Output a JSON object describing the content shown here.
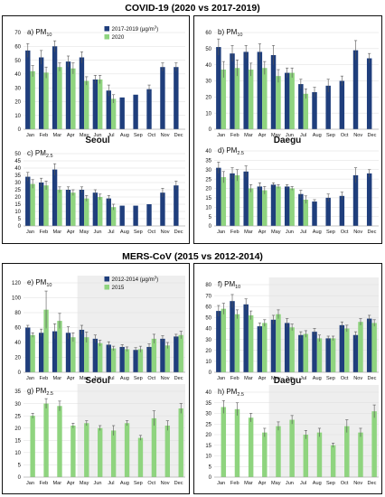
{
  "section_titles": [
    "COVID-19 (2020 vs 2017-2019)",
    "MERS-CoV (2015 vs 2012-2014)"
  ],
  "city_labels": [
    "Seoul",
    "Daegu",
    "Seoul",
    "Daegu"
  ],
  "colors": {
    "base": "#1f3e7c",
    "event": "#8fd47f",
    "shade": "#eeeeee"
  },
  "chart_data": [
    {
      "type": "bar",
      "panel": "a",
      "title": "a) PM10",
      "city": "Seoul",
      "categories": [
        "Jan",
        "Feb",
        "Mar",
        "Apr",
        "May",
        "Jun",
        "Jul",
        "Aug",
        "Sep",
        "Oct",
        "Nov",
        "Dec"
      ],
      "yticks": [
        0,
        10,
        20,
        30,
        40,
        50,
        60,
        70
      ],
      "ylim": [
        0,
        70
      ],
      "shaded": [],
      "series": [
        {
          "name": "2017-2019 (μg/m3)",
          "values": [
            57,
            52,
            60,
            49,
            52,
            36,
            28,
            23,
            25,
            29,
            45,
            45
          ],
          "err": [
            5,
            5,
            4,
            4,
            4,
            3,
            4,
            0,
            0,
            3,
            3,
            3
          ]
        },
        {
          "name": "2020",
          "values": [
            42,
            41,
            45,
            44,
            35,
            36,
            22,
            null,
            null,
            null,
            null,
            null
          ],
          "err": [
            4,
            4,
            3,
            4,
            3,
            3,
            3,
            null,
            null,
            null,
            null,
            null
          ]
        }
      ]
    },
    {
      "type": "bar",
      "panel": "b",
      "title": "b) PM10",
      "city": "Daegu",
      "categories": [
        "Jan",
        "Feb",
        "Mar",
        "Apr",
        "May",
        "Jun",
        "Jul",
        "Aug",
        "Sep",
        "Oct",
        "Nov",
        "Dec"
      ],
      "yticks": [
        0,
        10,
        20,
        30,
        40,
        50,
        60
      ],
      "ylim": [
        0,
        60
      ],
      "shaded": [],
      "series": [
        {
          "name": "",
          "values": [
            51,
            47,
            48,
            48,
            46,
            35,
            28,
            23,
            27,
            30,
            49,
            44
          ],
          "err": [
            5,
            5,
            4,
            5,
            6,
            3,
            3,
            3,
            4,
            3,
            6,
            3
          ]
        },
        {
          "name": "",
          "values": [
            37,
            38,
            37,
            38,
            33,
            35,
            22,
            null,
            null,
            null,
            null,
            null
          ],
          "err": [
            5,
            5,
            4,
            4,
            4,
            3,
            3,
            null,
            null,
            null,
            null,
            null
          ]
        }
      ]
    },
    {
      "type": "bar",
      "panel": "c",
      "title": "c) PM2.5",
      "city": "Seoul",
      "categories": [
        "Jan",
        "Feb",
        "Mar",
        "Apr",
        "May",
        "Jun",
        "Jul",
        "Aug",
        "Sep",
        "Oct",
        "Nov",
        "Dec"
      ],
      "yticks": [
        0,
        5,
        10,
        15,
        20,
        25,
        30,
        35,
        40,
        45,
        50
      ],
      "ylim": [
        0,
        50
      ],
      "shaded": [],
      "series": [
        {
          "name": "",
          "values": [
            34,
            30,
            39,
            25,
            25,
            23,
            19,
            14,
            14,
            15,
            23,
            28
          ],
          "err": [
            3,
            3,
            4,
            2,
            2,
            2,
            2,
            0,
            0,
            0,
            3,
            3
          ]
        },
        {
          "name": "",
          "values": [
            29,
            28,
            25,
            23,
            19,
            20,
            13,
            null,
            null,
            null,
            null,
            null
          ],
          "err": [
            3,
            3,
            2,
            2,
            2,
            2,
            2,
            null,
            null,
            null,
            null,
            null
          ]
        }
      ]
    },
    {
      "type": "bar",
      "panel": "d",
      "title": "d) PM2.5",
      "city": "Daegu",
      "categories": [
        "Jan",
        "Feb",
        "Mar",
        "Apr",
        "May",
        "Jun",
        "Jul",
        "Aug",
        "Sep",
        "Oct",
        "Nov",
        "Dec"
      ],
      "yticks": [
        0,
        5,
        10,
        15,
        20,
        25,
        30,
        35,
        40
      ],
      "ylim": [
        0,
        40
      ],
      "shaded": [],
      "series": [
        {
          "name": "",
          "values": [
            31,
            28,
            29,
            21,
            22,
            21,
            17,
            13,
            15,
            16,
            27,
            28
          ],
          "err": [
            3,
            3,
            3,
            2,
            1,
            1,
            2,
            1,
            2,
            2,
            4,
            2
          ]
        },
        {
          "name": "",
          "values": [
            26,
            27,
            20,
            19,
            21,
            20,
            14,
            null,
            null,
            null,
            null,
            null
          ],
          "err": [
            3,
            3,
            2,
            2,
            1,
            1,
            2,
            null,
            null,
            null,
            null,
            null
          ]
        }
      ]
    },
    {
      "type": "bar",
      "panel": "e",
      "title": "e) PM10",
      "city": "Seoul",
      "categories": [
        "Jan",
        "Feb",
        "Mar",
        "Apr",
        "May",
        "Jun",
        "Jul",
        "Aug",
        "Sep",
        "Oct",
        "Nov",
        "Dec"
      ],
      "yticks": [
        0,
        20,
        40,
        60,
        80,
        100,
        120
      ],
      "ylim": [
        0,
        120
      ],
      "shaded": [
        4,
        11
      ],
      "series": [
        {
          "name": "2012-2014 (μg/m3)",
          "values": [
            60,
            53,
            55,
            53,
            57,
            45,
            37,
            34,
            30,
            34,
            45,
            48
          ],
          "err": [
            3,
            5,
            10,
            8,
            6,
            5,
            4,
            3,
            3,
            4,
            4,
            3
          ]
        },
        {
          "name": "2015",
          "values": [
            50,
            84,
            69,
            47,
            47,
            39,
            32,
            31,
            31,
            45,
            36,
            50
          ],
          "err": [
            3,
            25,
            10,
            6,
            7,
            4,
            3,
            3,
            4,
            6,
            4,
            5
          ]
        }
      ]
    },
    {
      "type": "bar",
      "panel": "f",
      "title": "f) PM10",
      "city": "Daegu",
      "categories": [
        "Jan",
        "Feb",
        "Mar",
        "Apr",
        "May",
        "Jun",
        "Jul",
        "Aug",
        "Sep",
        "Oct",
        "Nov",
        "Dec"
      ],
      "yticks": [
        0,
        10,
        20,
        30,
        40,
        50,
        60,
        70,
        80
      ],
      "ylim": [
        0,
        80
      ],
      "shaded": [
        4,
        11
      ],
      "series": [
        {
          "name": "",
          "values": [
            56,
            65,
            62,
            42,
            48,
            45,
            34,
            37,
            31,
            43,
            34,
            49
          ],
          "err": [
            5,
            6,
            5,
            3,
            4,
            4,
            3,
            3,
            2,
            3,
            3,
            3
          ]
        },
        {
          "name": "",
          "values": [
            58,
            53,
            52,
            45,
            53,
            41,
            35,
            31,
            31,
            40,
            46,
            45
          ],
          "err": [
            5,
            4,
            4,
            3,
            4,
            3,
            3,
            3,
            2,
            3,
            3,
            3
          ]
        }
      ]
    },
    {
      "type": "bar",
      "panel": "g",
      "title": "g) PM2.5",
      "city": "Seoul",
      "categories": [
        "Jan",
        "Feb",
        "Mar",
        "Apr",
        "May",
        "Jun",
        "Jul",
        "Aug",
        "Sep",
        "Oct",
        "Nov",
        "Dec"
      ],
      "yticks": [
        0,
        5,
        10,
        15,
        20,
        25,
        30,
        35
      ],
      "ylim": [
        0,
        35
      ],
      "shaded": [
        4,
        11
      ],
      "series": [
        {
          "name": "",
          "values": [
            null,
            null,
            null,
            null,
            null,
            null,
            null,
            null,
            null,
            null,
            null,
            null
          ],
          "err": [
            null,
            null,
            null,
            null,
            null,
            null,
            null,
            null,
            null,
            null,
            null,
            null
          ]
        },
        {
          "name": "",
          "values": [
            25,
            30,
            29,
            21,
            22,
            20,
            19,
            22,
            16,
            24,
            21,
            28
          ],
          "err": [
            1,
            2,
            2,
            1,
            1,
            1,
            2,
            1,
            1,
            3,
            2,
            2
          ]
        }
      ]
    },
    {
      "type": "bar",
      "panel": "h",
      "title": "h) PM2.5",
      "city": "Daegu",
      "categories": [
        "Jan",
        "Feb",
        "Mar",
        "Apr",
        "May",
        "Jun",
        "Jul",
        "Aug",
        "Sep",
        "Oct",
        "Nov",
        "Dec"
      ],
      "yticks": [
        0,
        5,
        10,
        15,
        20,
        25,
        30,
        35,
        40
      ],
      "ylim": [
        0,
        40
      ],
      "shaded": [
        4,
        11
      ],
      "series": [
        {
          "name": "",
          "values": [
            null,
            null,
            null,
            null,
            null,
            null,
            null,
            null,
            null,
            null,
            null,
            null
          ],
          "err": [
            null,
            null,
            null,
            null,
            null,
            null,
            null,
            null,
            null,
            null,
            null,
            null
          ]
        },
        {
          "name": "",
          "values": [
            33,
            32,
            28,
            21,
            24,
            27,
            20,
            21,
            15,
            24,
            21,
            31
          ],
          "err": [
            3,
            3,
            2,
            2,
            2,
            2,
            2,
            2,
            1,
            3,
            2,
            3
          ]
        }
      ]
    }
  ]
}
